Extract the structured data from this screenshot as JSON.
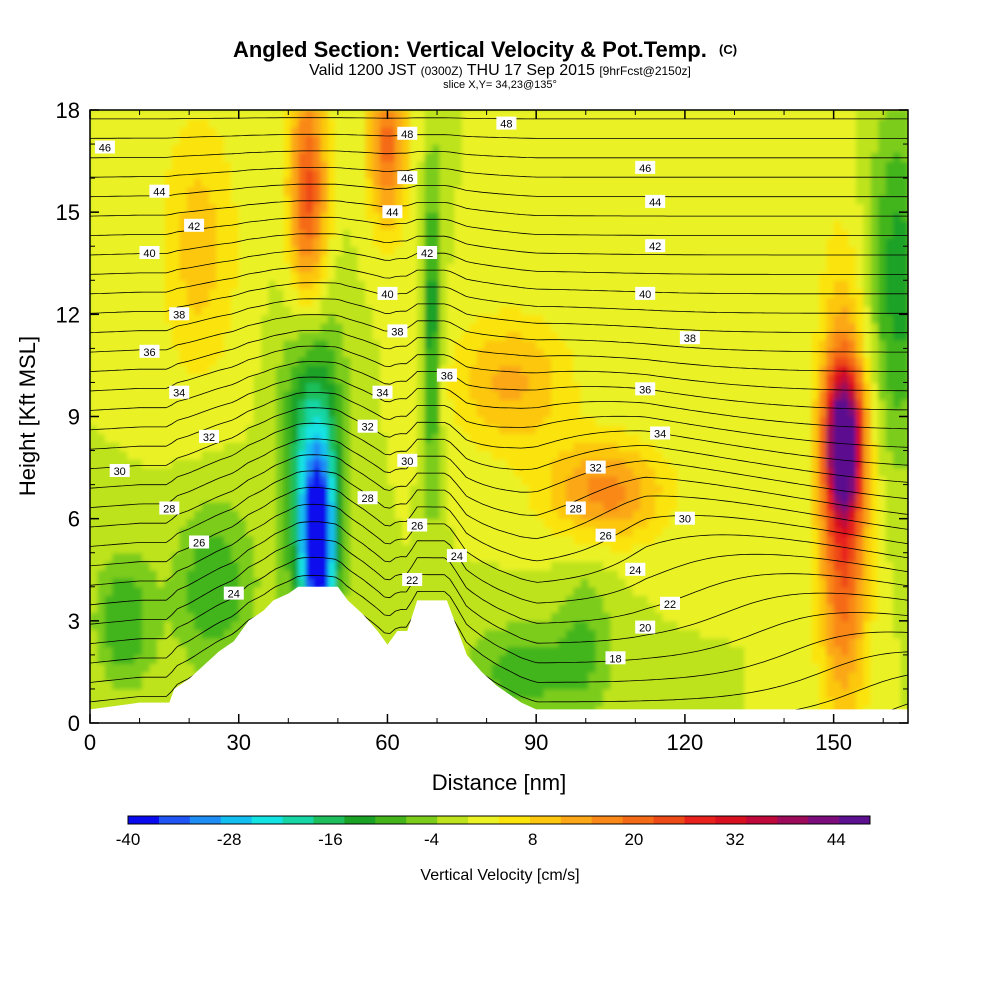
{
  "title": {
    "main": "Angled Section: Vertical Velocity & Pot.Temp.",
    "main_tag": "(C)",
    "sub_a": "Valid 1200 JST",
    "sub_b": "(0300Z)",
    "sub_c": "THU 17 Sep 2015",
    "sub_d": "[9hrFcst@2150z]",
    "slice": "slice X,Y= 34,23@135°"
  },
  "chart_data": {
    "type": "heatmap",
    "xlabel": "Distance [nm]",
    "ylabel": "Height [Kft MSL]",
    "xlim": [
      0,
      165
    ],
    "ylim": [
      0,
      18
    ],
    "x_ticks": [
      "0",
      "30",
      "60",
      "90",
      "120",
      "150"
    ],
    "y_ticks": [
      "0",
      "3",
      "6",
      "9",
      "12",
      "15",
      "18"
    ],
    "x_tick_values": [
      0,
      30,
      60,
      90,
      120,
      150
    ],
    "y_tick_values": [
      0,
      3,
      6,
      9,
      12,
      15,
      18
    ],
    "grid": false,
    "colorbar": {
      "title": "Vertical Velocity [cm/s]",
      "min": -40,
      "max": 48,
      "step": 4,
      "tick_labels": [
        "-40",
        "-28",
        "-16",
        "-4",
        "8",
        "20",
        "32",
        "44"
      ],
      "tick_values": [
        -40,
        -28,
        -16,
        -4,
        8,
        20,
        32,
        44
      ],
      "colors": [
        "#0a0aee",
        "#1f55f5",
        "#1e8cf5",
        "#12bff0",
        "#13e3e3",
        "#17d6a6",
        "#1dbf5c",
        "#1aa226",
        "#43b51b",
        "#7ccc1b",
        "#bde31d",
        "#eaf225",
        "#fbe40e",
        "#fcc70e",
        "#fba718",
        "#f98818",
        "#f56a17",
        "#ee4a18",
        "#e8211c",
        "#d9101f",
        "#c0083a",
        "#9e0a5a",
        "#7c0c7c",
        "#5c0f8f"
      ]
    },
    "vertical_velocity_features": [
      {
        "x": 46,
        "z": 5.0,
        "value": -36,
        "rx": 3,
        "rz": 2.6
      },
      {
        "x": 45,
        "z": 7.5,
        "value": -20,
        "rx": 6,
        "rz": 4.5
      },
      {
        "x": 44,
        "z": 15.5,
        "value": 30,
        "rx": 4,
        "rz": 3.5
      },
      {
        "x": 60,
        "z": 17,
        "value": 26,
        "rx": 4,
        "rz": 2.5
      },
      {
        "x": 69,
        "z": 11.5,
        "value": -12,
        "rx": 1.8,
        "rz": 5
      },
      {
        "x": 152,
        "z": 8.3,
        "value": 46,
        "rx": 3.5,
        "rz": 2.0
      },
      {
        "x": 152,
        "z": 6.5,
        "value": 32,
        "rx": 5,
        "rz": 6
      },
      {
        "x": 104,
        "z": 6.8,
        "value": 22,
        "rx": 12,
        "rz": 1.5
      },
      {
        "x": 85,
        "z": 10,
        "value": 17,
        "rx": 12,
        "rz": 2.0
      },
      {
        "x": 22,
        "z": 14,
        "value": 14,
        "rx": 8,
        "rz": 4
      },
      {
        "x": 163,
        "z": 13,
        "value": -10,
        "rx": 6,
        "rz": 5
      },
      {
        "x": 7,
        "z": 3.0,
        "value": -8,
        "rx": 6,
        "rz": 2
      },
      {
        "x": 25,
        "z": 4.0,
        "value": -8,
        "rx": 8,
        "rz": 2.5
      },
      {
        "x": 87,
        "z": 1.5,
        "value": -6,
        "rx": 12,
        "rz": 1.5
      },
      {
        "x": 100,
        "z": 2.5,
        "value": -3,
        "rx": 6,
        "rz": 2.5
      }
    ],
    "terrain_profile": [
      [
        0,
        0.4
      ],
      [
        10,
        0.6
      ],
      [
        13,
        0.6
      ],
      [
        16,
        0.6
      ],
      [
        17,
        1.0
      ],
      [
        20,
        1.3
      ],
      [
        23,
        1.7
      ],
      [
        26,
        2.1
      ],
      [
        29,
        2.4
      ],
      [
        32,
        3.0
      ],
      [
        35,
        3.3
      ],
      [
        37,
        3.6
      ],
      [
        40,
        3.8
      ],
      [
        42,
        4.0
      ],
      [
        50,
        4.0
      ],
      [
        52,
        3.6
      ],
      [
        55,
        3.2
      ],
      [
        58,
        2.7
      ],
      [
        60,
        2.3
      ],
      [
        62,
        2.7
      ],
      [
        64,
        2.7
      ],
      [
        66,
        3.6
      ],
      [
        72,
        3.6
      ],
      [
        74,
        2.8
      ],
      [
        76,
        2.0
      ],
      [
        79,
        1.5
      ],
      [
        82,
        1.1
      ],
      [
        84,
        0.9
      ],
      [
        87,
        0.6
      ],
      [
        90,
        0.4
      ],
      [
        165,
        0.4
      ]
    ],
    "isentropes": {
      "units": "°C",
      "levels": [
        16,
        17,
        18,
        19,
        20,
        21,
        22,
        23,
        24,
        25,
        26,
        27,
        28,
        29,
        30,
        31,
        32,
        33,
        34,
        35,
        36,
        37,
        38,
        39,
        40,
        41,
        42,
        43,
        44,
        45,
        46,
        47,
        48
      ],
      "labels": [
        {
          "text": "48",
          "x": 64,
          "z": 17.3
        },
        {
          "text": "48",
          "x": 84,
          "z": 17.6
        },
        {
          "text": "46",
          "x": 3,
          "z": 16.9
        },
        {
          "text": "46",
          "x": 64,
          "z": 16.0
        },
        {
          "text": "46",
          "x": 112,
          "z": 16.3
        },
        {
          "text": "44",
          "x": 14,
          "z": 15.6
        },
        {
          "text": "44",
          "x": 61,
          "z": 15.0
        },
        {
          "text": "44",
          "x": 114,
          "z": 15.3
        },
        {
          "text": "42",
          "x": 21,
          "z": 14.6
        },
        {
          "text": "42",
          "x": 68,
          "z": 13.8
        },
        {
          "text": "42",
          "x": 114,
          "z": 14.0
        },
        {
          "text": "40",
          "x": 12,
          "z": 13.8
        },
        {
          "text": "40",
          "x": 60,
          "z": 12.6
        },
        {
          "text": "40",
          "x": 112,
          "z": 12.6
        },
        {
          "text": "38",
          "x": 18,
          "z": 12.0
        },
        {
          "text": "38",
          "x": 62,
          "z": 11.5
        },
        {
          "text": "38",
          "x": 121,
          "z": 11.3
        },
        {
          "text": "36",
          "x": 12,
          "z": 10.9
        },
        {
          "text": "36",
          "x": 72,
          "z": 10.2
        },
        {
          "text": "36",
          "x": 112,
          "z": 9.8
        },
        {
          "text": "34",
          "x": 18,
          "z": 9.7
        },
        {
          "text": "34",
          "x": 59,
          "z": 9.7
        },
        {
          "text": "34",
          "x": 115,
          "z": 8.5
        },
        {
          "text": "32",
          "x": 24,
          "z": 8.4
        },
        {
          "text": "32",
          "x": 56,
          "z": 8.7
        },
        {
          "text": "32",
          "x": 102,
          "z": 7.5
        },
        {
          "text": "30",
          "x": 6,
          "z": 7.4
        },
        {
          "text": "30",
          "x": 64,
          "z": 7.7
        },
        {
          "text": "30",
          "x": 120,
          "z": 6.0
        },
        {
          "text": "28",
          "x": 16,
          "z": 6.3
        },
        {
          "text": "28",
          "x": 56,
          "z": 6.6
        },
        {
          "text": "28",
          "x": 98,
          "z": 6.3
        },
        {
          "text": "26",
          "x": 22,
          "z": 5.3
        },
        {
          "text": "26",
          "x": 66,
          "z": 5.8
        },
        {
          "text": "26",
          "x": 104,
          "z": 5.5
        },
        {
          "text": "24",
          "x": 29,
          "z": 3.8
        },
        {
          "text": "24",
          "x": 74,
          "z": 4.9
        },
        {
          "text": "24",
          "x": 110,
          "z": 4.5
        },
        {
          "text": "22",
          "x": 65,
          "z": 4.2
        },
        {
          "text": "22",
          "x": 117,
          "z": 3.5
        },
        {
          "text": "20",
          "x": 112,
          "z": 2.8
        },
        {
          "text": "18",
          "x": 106,
          "z": 1.9
        }
      ]
    }
  }
}
